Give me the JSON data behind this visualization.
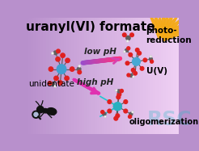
{
  "title": "uranyl(VI) formate",
  "bg_color_left": "#b890cc",
  "bg_color_right": "#f0d0f4",
  "orange_burst_color": "#f0a020",
  "low_pH_label": "low pH",
  "high_pH_label": "high pH",
  "label_unidentate": "unidentate",
  "label_photo": "photo-\nreduction",
  "label_uv": "U(V)",
  "label_oligo": "oligomerization",
  "uranium_color": "#40a0d0",
  "uranium_color2": "#30b0c0",
  "oxygen_color": "#e02020",
  "carbon_color": "#606060",
  "hydrogen_color": "#f0f0f0",
  "watermark_color": "#30b8c8",
  "ant_color": "#111111",
  "title_fontsize": 11,
  "label_fontsize": 7.5
}
